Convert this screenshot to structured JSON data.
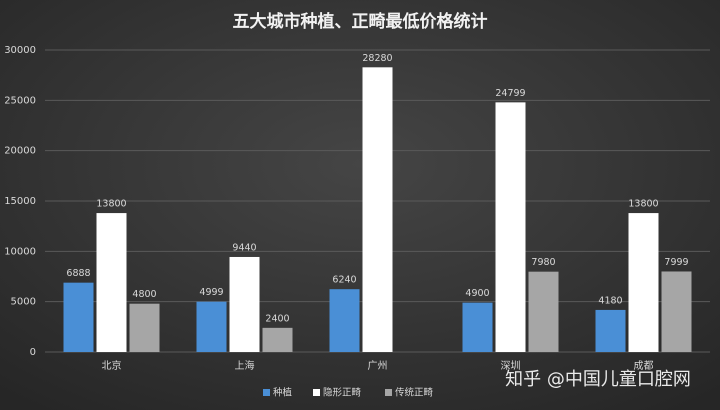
{
  "chart_data": {
    "type": "bar",
    "title": "五大城市种植、正畸最低价格统计",
    "categories": [
      "北京",
      "上海",
      "广州",
      "深圳",
      "成都"
    ],
    "series": [
      {
        "name": "种植",
        "color": "#4a8fd6",
        "values": [
          6888,
          4999,
          6240,
          4900,
          4180
        ]
      },
      {
        "name": "隐形正畸",
        "color": "#ffffff",
        "values": [
          13800,
          9440,
          28280,
          24799,
          13800
        ]
      },
      {
        "name": "传统正畸",
        "color": "#a6a6a6",
        "values": [
          4800,
          2400,
          null,
          7980,
          7999
        ]
      }
    ],
    "ylim": [
      0,
      30000
    ],
    "yticks": [
      0,
      5000,
      10000,
      15000,
      20000,
      25000,
      30000
    ],
    "grid": true,
    "legend": "bottom",
    "watermark": "知乎 @中国儿童口腔网"
  }
}
